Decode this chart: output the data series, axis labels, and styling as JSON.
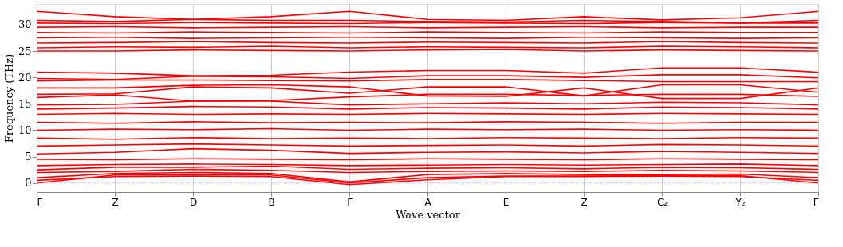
{
  "chart_data": {
    "type": "line",
    "xlabel": "Wave vector",
    "ylabel": "Frequency (THz)",
    "categories": [
      "Γ",
      "Z",
      "D",
      "B",
      "Γ",
      "A",
      "E",
      "Z",
      "C₂",
      "Y₂",
      "Γ"
    ],
    "ylim": [
      -1.7,
      33.9
    ],
    "yticks": [
      0,
      5,
      10,
      15,
      20,
      25,
      30
    ],
    "grid": "x",
    "line_style": "solid",
    "marker": "none",
    "legend": false,
    "ref_lines": [
      {
        "axis": "y",
        "value": 0,
        "color": "#8080ff",
        "line_style": "dotted"
      }
    ],
    "series": [
      {
        "color": "#ff0000",
        "values": [
          0,
          1.5,
          1.5,
          1.5,
          0,
          1.0,
          1.3,
          1.3,
          1.4,
          1.4,
          0
        ]
      },
      {
        "color": "#ff0000",
        "values": [
          0.5,
          1.2,
          1.3,
          1.2,
          -0.3,
          0.6,
          1.2,
          1.2,
          1.3,
          1.2,
          0.5
        ]
      },
      {
        "color": "#ff0000",
        "values": [
          1.0,
          1.8,
          2.0,
          1.8,
          0.2,
          1.6,
          1.8,
          1.6,
          1.6,
          1.7,
          1.0
        ]
      },
      {
        "color": "#ff0000",
        "values": [
          2.0,
          2.2,
          2.6,
          2.4,
          2.0,
          2.2,
          2.3,
          2.2,
          2.4,
          2.3,
          2.0
        ]
      },
      {
        "color": "#ff0000",
        "values": [
          2.5,
          3.0,
          3.0,
          3.2,
          2.6,
          2.8,
          2.9,
          2.7,
          3.0,
          2.9,
          2.6
        ]
      },
      {
        "color": "#ff0000",
        "values": [
          3.3,
          3.5,
          3.6,
          3.5,
          3.3,
          3.4,
          3.5,
          3.4,
          3.5,
          3.6,
          3.3
        ]
      },
      {
        "color": "#ff0000",
        "values": [
          4.5,
          4.4,
          4.6,
          4.5,
          4.4,
          4.6,
          4.5,
          4.4,
          4.6,
          4.5,
          4.4
        ]
      },
      {
        "color": "#ff0000",
        "values": [
          5.5,
          5.8,
          6.5,
          6.2,
          5.6,
          5.8,
          5.9,
          5.7,
          6.0,
          5.8,
          5.6
        ]
      },
      {
        "color": "#ff0000",
        "values": [
          7.0,
          7.2,
          7.4,
          7.2,
          7.0,
          7.1,
          7.2,
          7.0,
          7.3,
          7.2,
          7.0
        ]
      },
      {
        "color": "#ff0000",
        "values": [
          8.5,
          8.3,
          8.6,
          8.4,
          8.5,
          8.4,
          8.6,
          8.5,
          8.4,
          8.6,
          8.5
        ]
      },
      {
        "color": "#ff0000",
        "values": [
          10.0,
          10.2,
          10.1,
          10.3,
          10.0,
          10.2,
          10.1,
          10.2,
          10.0,
          10.1,
          10.0
        ]
      },
      {
        "color": "#ff0000",
        "values": [
          11.5,
          11.3,
          11.6,
          11.4,
          11.5,
          11.4,
          11.6,
          11.5,
          11.3,
          11.5,
          11.5
        ]
      },
      {
        "color": "#ff0000",
        "values": [
          13.0,
          13.2,
          13.0,
          13.1,
          13.0,
          13.2,
          13.1,
          13.0,
          13.2,
          13.1,
          13.0
        ]
      },
      {
        "color": "#ff0000",
        "values": [
          14.0,
          14.2,
          14.5,
          14.4,
          14.0,
          14.3,
          14.2,
          14.0,
          14.4,
          14.3,
          14.0
        ]
      },
      {
        "color": "#ff0000",
        "values": [
          14.8,
          14.9,
          15.5,
          15.5,
          14.8,
          15.0,
          15.2,
          15.0,
          15.3,
          15.2,
          14.8
        ]
      },
      {
        "color": "#ff0000",
        "values": [
          16.2,
          16.7,
          15.5,
          15.6,
          16.3,
          16.8,
          16.8,
          16.6,
          16.8,
          16.8,
          16.4
        ]
      },
      {
        "color": "#ff0000",
        "values": [
          16.8,
          16.9,
          18.2,
          18.0,
          17.0,
          18.2,
          18.2,
          16.5,
          18.6,
          18.6,
          17.2
        ]
      },
      {
        "color": "#ff0000",
        "values": [
          18.0,
          18.0,
          18.5,
          18.6,
          18.2,
          16.5,
          16.4,
          18.0,
          16.0,
          16.0,
          18.0
        ]
      },
      {
        "color": "#ff0000",
        "values": [
          19.3,
          19.5,
          19.5,
          19.4,
          19.3,
          19.6,
          19.6,
          19.4,
          19.2,
          19.2,
          19.2
        ]
      },
      {
        "color": "#ff0000",
        "values": [
          19.8,
          19.6,
          20.2,
          20.1,
          19.8,
          20.3,
          20.3,
          20.0,
          20.5,
          20.5,
          19.9
        ]
      },
      {
        "color": "#ff0000",
        "values": [
          21.0,
          20.8,
          20.3,
          20.4,
          21.0,
          21.3,
          21.3,
          20.8,
          21.8,
          21.8,
          21.0
        ]
      },
      {
        "color": "#ff0000",
        "values": [
          25.0,
          25.0,
          25.2,
          25.1,
          25.0,
          25.2,
          25.3,
          25.0,
          25.2,
          25.1,
          25.0
        ]
      },
      {
        "color": "#ff0000",
        "values": [
          25.6,
          25.8,
          25.7,
          25.9,
          25.6,
          25.8,
          25.7,
          25.6,
          25.9,
          25.8,
          25.6
        ]
      },
      {
        "color": "#ff0000",
        "values": [
          26.5,
          26.6,
          26.8,
          26.6,
          26.5,
          26.7,
          26.6,
          26.5,
          26.8,
          26.6,
          26.5
        ]
      },
      {
        "color": "#ff0000",
        "values": [
          27.5,
          27.6,
          27.4,
          27.5,
          27.6,
          27.5,
          27.4,
          27.6,
          27.5,
          27.4,
          27.5
        ]
      },
      {
        "color": "#ff0000",
        "values": [
          28.5,
          28.4,
          28.6,
          28.5,
          28.4,
          28.6,
          28.5,
          28.4,
          28.6,
          28.5,
          28.5
        ]
      },
      {
        "color": "#ff0000",
        "values": [
          29.5,
          29.6,
          29.4,
          29.5,
          29.6,
          29.4,
          29.5,
          29.6,
          29.4,
          29.5,
          29.5
        ]
      },
      {
        "color": "#ff0000",
        "values": [
          30.3,
          30.2,
          30.4,
          30.3,
          30.2,
          30.4,
          30.3,
          30.2,
          30.4,
          30.3,
          30.3
        ]
      },
      {
        "color": "#ff0000",
        "values": [
          30.8,
          30.6,
          31.0,
          30.8,
          30.8,
          30.6,
          30.5,
          30.8,
          30.6,
          30.3,
          30.8
        ]
      },
      {
        "color": "#ff0000",
        "values": [
          32.5,
          31.5,
          31.0,
          31.5,
          32.5,
          31.0,
          30.8,
          31.5,
          30.9,
          31.3,
          32.5
        ]
      }
    ]
  }
}
